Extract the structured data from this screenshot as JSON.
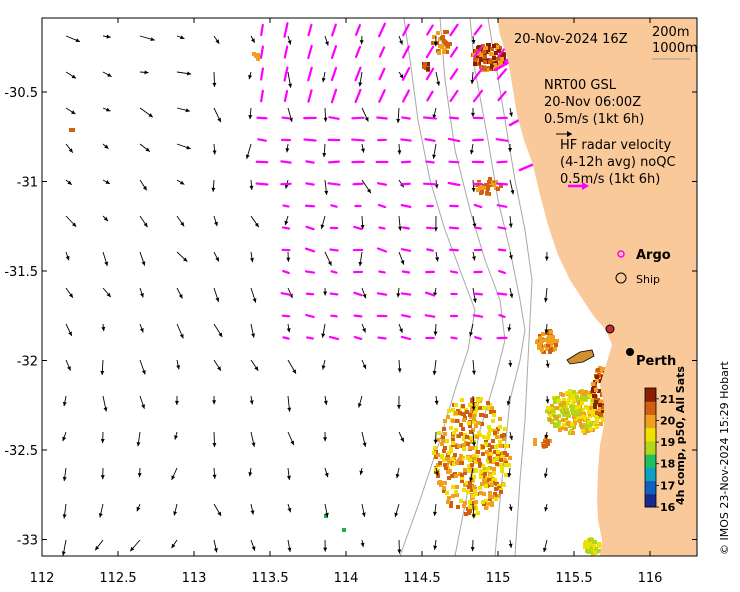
{
  "map": {
    "x_ticks": [
      "112",
      "112.5",
      "113",
      "113.5",
      "114",
      "114.5",
      "115",
      "115.5",
      "116"
    ],
    "y_ticks": [
      "-30.5",
      "-31",
      "-31.5",
      "-32",
      "-32.5",
      "-33"
    ],
    "bbox_lon": [
      112,
      116.3
    ],
    "bbox_lat": [
      -33.1,
      -30.05
    ],
    "land_color": "#fac99a",
    "sst_palette": [
      "#1a2a8c",
      "#1060c0",
      "#10a0c0",
      "#20c060",
      "#b0d818",
      "#f0e000",
      "#f0a020",
      "#d06010",
      "#8a2000"
    ]
  },
  "annotations": {
    "date": "20-Nov-2024 16Z",
    "iso1": "200m",
    "iso2": "1000m",
    "model_line1": "NRT00 GSL",
    "model_line2": "20-Nov 06:00Z",
    "model_line3": "0.5m/s (1kt 6h)",
    "hf_line1": "HF radar velocity",
    "hf_line2": "(4-12h avg) noQC",
    "hf_line3": "0.5m/s (1kt 6h)",
    "argo_label": "Argo",
    "ship_label": "Ship",
    "city": "Perth"
  },
  "colorbar": {
    "title": "4h comp, p50, All Sats",
    "ticks": [
      "21",
      "20",
      "19",
      "18",
      "17",
      "16"
    ],
    "min": 16,
    "max": 21.5
  },
  "credit": "© IMOS 23-Nov-2024 15:29 Hobart",
  "markers": {
    "argo": {
      "lon": 115.67,
      "lat": -31.82
    },
    "ship": {
      "lon": 115.85,
      "lat": -31.95
    },
    "perth": {
      "lon": 115.86,
      "lat": -31.95
    }
  }
}
